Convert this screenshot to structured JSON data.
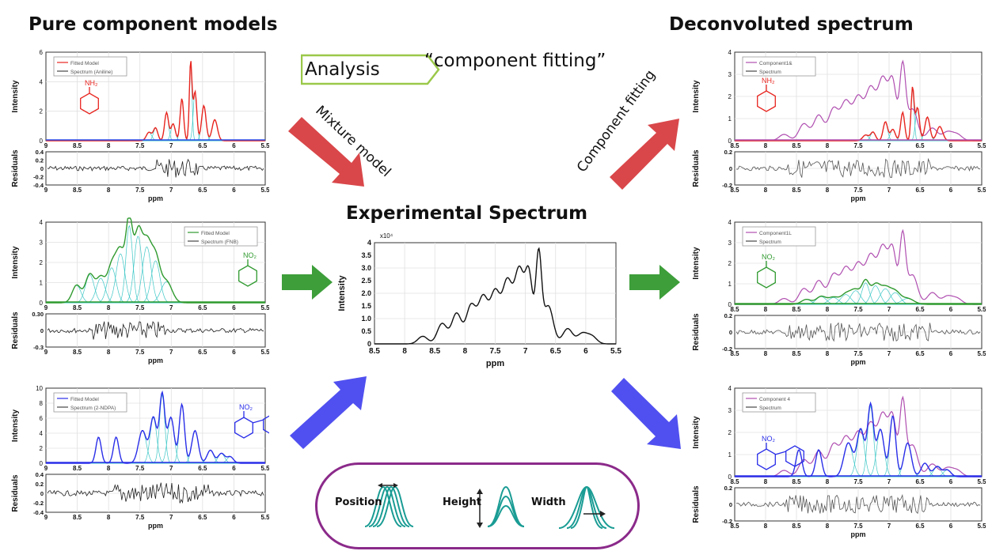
{
  "titles": {
    "left": "Pure component models",
    "right": "Deconvoluted spectrum",
    "center": "Experimental Spectrum"
  },
  "analysis": {
    "label": "Analysis",
    "subtitle": "“component fitting”"
  },
  "arrow_labels": {
    "mixture": "Mixture model",
    "fitting": "Component fitting"
  },
  "axes": {
    "intensity": "Intensity",
    "residuals": "Residuals",
    "ppm": "ppm",
    "exp_scale": "x10⁴"
  },
  "left_panels": [
    {
      "legend": [
        "Fitted Model",
        "Spectrum (Aniline)"
      ],
      "molecule": "NH₂",
      "yticks": [
        "0",
        "2",
        "4",
        "6"
      ],
      "rticks": [
        "0.4",
        "0.2",
        "0",
        "-0.2",
        "-0.4"
      ],
      "xticks": [
        "9",
        "8.5",
        "8",
        "7.5",
        "7",
        "6.5",
        "6",
        "5.5"
      ]
    },
    {
      "legend": [
        "Fitted Model",
        "Spectrum (FNB)"
      ],
      "molecule": "NO₂",
      "yticks": [
        "0",
        "1",
        "2",
        "3",
        "4"
      ],
      "rticks": [
        "0.30",
        "0",
        "-0.3"
      ],
      "xticks": [
        "9",
        "8.5",
        "8",
        "7.5",
        "7",
        "6.5",
        "6",
        "5.5"
      ]
    },
    {
      "legend": [
        "Fitted Model",
        "Spectrum (2-NDPA)"
      ],
      "molecule": "NO₂",
      "yticks": [
        "0",
        "2",
        "4",
        "6",
        "8",
        "10"
      ],
      "rticks": [
        "0.4",
        "0.2",
        "0",
        "-0.2",
        "-0.4"
      ],
      "xticks": [
        "9",
        "8.5",
        "8",
        "7.5",
        "7",
        "6.5",
        "6",
        "5.5"
      ]
    }
  ],
  "right_panels": [
    {
      "legend": [
        "Component1&",
        "Spectrum"
      ],
      "molecule": "NH₂",
      "yticks": [
        "0",
        "1",
        "2",
        "3",
        "4"
      ],
      "rticks": [
        "0.2",
        "0",
        "-0.2"
      ],
      "xticks": [
        "8.5",
        "8",
        "8.5",
        "8",
        "7.5",
        "7",
        "6.5",
        "6",
        "5.5"
      ]
    },
    {
      "legend": [
        "Component1L",
        "Spectrum"
      ],
      "molecule": "NO₂",
      "yticks": [
        "0",
        "1",
        "2",
        "3",
        "4"
      ],
      "rticks": [
        "0.2",
        "0",
        "-0.2"
      ],
      "xticks": [
        "8.5",
        "8",
        "8.5",
        "8",
        "7.5",
        "7",
        "6.5",
        "6",
        "5.5"
      ]
    },
    {
      "legend": [
        "Component 4",
        "Spectrum"
      ],
      "molecule": "NO₂",
      "yticks": [
        "0",
        "1",
        "2",
        "3",
        "4"
      ],
      "rticks": [
        "0.2",
        "0",
        "-0.2"
      ],
      "xticks": [
        "8.5",
        "8",
        "8.5",
        "8",
        "7.5",
        "7",
        "6.5",
        "6",
        "5.5"
      ]
    }
  ],
  "experimental": {
    "yticks": [
      "0",
      "0.5",
      "1.0",
      "1.5",
      "2.0",
      "2.5",
      "3.0",
      "3.5",
      "4"
    ],
    "xticks": [
      "8.5",
      "8",
      "8.5",
      "8",
      "7.5",
      "7",
      "6.5",
      "6",
      "5.5"
    ]
  },
  "params": {
    "position": "Position",
    "height": "Height",
    "width": "Width"
  },
  "colors": {
    "aniline": "#e8251f",
    "fnb": "#2f9a2f",
    "ndpa": "#2a2ee8",
    "fit_components": "#3fc7c7",
    "deconv": "#b04fb0",
    "arrow_red": "#d9474a",
    "arrow_green": "#3d9e3a",
    "arrow_blue": "#5050f0",
    "param_teal": "#1a9c94",
    "analysis_border": "#9bc84a",
    "params_border": "#8b2a8a"
  }
}
